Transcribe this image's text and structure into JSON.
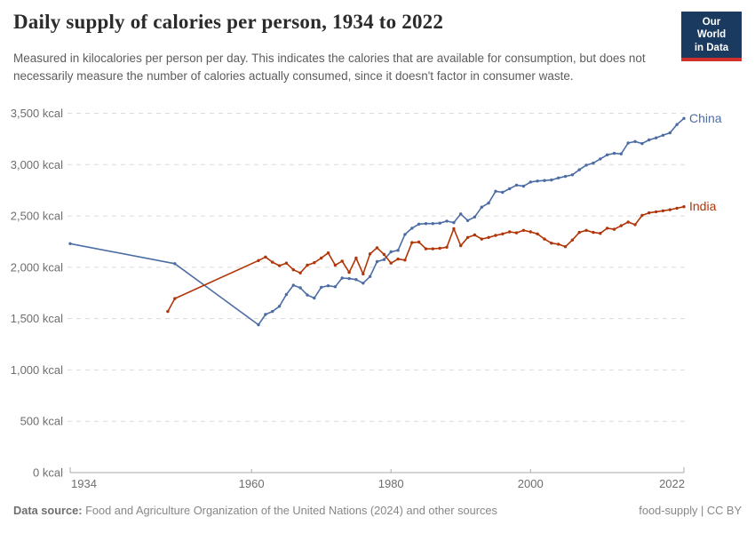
{
  "header": {
    "title": "Daily supply of calories per person, 1934 to 2022",
    "subtitle": "Measured in kilocalories per person per day. This indicates the calories that are available for consumption, but does not necessarily measure the number of calories actually consumed, since it doesn't factor in consumer waste.",
    "logo": {
      "line1": "Our World",
      "line2": "in Data"
    }
  },
  "footer": {
    "datasource_label": "Data source:",
    "datasource_text": " Food and Agriculture Organization of the United Nations (2024) and other sources",
    "right_text": "food-supply | CC BY"
  },
  "colors": {
    "china_line": "#4C6DA4",
    "india_line": "#B13507",
    "gridline": "#dadada",
    "axis": "#a8a8a8",
    "logo_bg": "#1a3a5f",
    "logo_stripe": "#d0312d"
  },
  "chart_data": {
    "type": "line",
    "title": "Daily supply of calories per person, 1934 to 2022",
    "xlabel": "",
    "ylabel": "",
    "unit": "kcal",
    "xlim": [
      1934,
      2022
    ],
    "ylim": [
      0,
      3500
    ],
    "grid": "horizontal-dashed",
    "legend_position": "line-end-labels",
    "x_ticks": [
      1934,
      1960,
      1980,
      2000,
      2022
    ],
    "y_ticks": [
      {
        "value": 0,
        "label": "0 kcal"
      },
      {
        "value": 500,
        "label": "500 kcal"
      },
      {
        "value": 1000,
        "label": "1,000 kcal"
      },
      {
        "value": 1500,
        "label": "1,500 kcal"
      },
      {
        "value": 2000,
        "label": "2,000 kcal"
      },
      {
        "value": 2500,
        "label": "2,500 kcal"
      },
      {
        "value": 3000,
        "label": "3,000 kcal"
      },
      {
        "value": 3500,
        "label": "3,500 kcal"
      }
    ],
    "series": [
      {
        "name": "China",
        "color": "#4C6DA4",
        "points": [
          [
            1934,
            2230
          ],
          [
            1949,
            2035
          ],
          [
            1961,
            1440
          ],
          [
            1962,
            1540
          ],
          [
            1963,
            1570
          ],
          [
            1964,
            1620
          ],
          [
            1965,
            1735
          ],
          [
            1966,
            1825
          ],
          [
            1967,
            1800
          ],
          [
            1968,
            1730
          ],
          [
            1969,
            1700
          ],
          [
            1970,
            1805
          ],
          [
            1971,
            1820
          ],
          [
            1972,
            1810
          ],
          [
            1973,
            1895
          ],
          [
            1974,
            1890
          ],
          [
            1975,
            1880
          ],
          [
            1976,
            1845
          ],
          [
            1977,
            1910
          ],
          [
            1978,
            2055
          ],
          [
            1979,
            2075
          ],
          [
            1980,
            2150
          ],
          [
            1981,
            2165
          ],
          [
            1982,
            2320
          ],
          [
            1983,
            2380
          ],
          [
            1984,
            2420
          ],
          [
            1985,
            2425
          ],
          [
            1986,
            2425
          ],
          [
            1987,
            2430
          ],
          [
            1988,
            2450
          ],
          [
            1989,
            2435
          ],
          [
            1990,
            2520
          ],
          [
            1991,
            2455
          ],
          [
            1992,
            2490
          ],
          [
            1993,
            2585
          ],
          [
            1994,
            2625
          ],
          [
            1995,
            2740
          ],
          [
            1996,
            2730
          ],
          [
            1997,
            2765
          ],
          [
            1998,
            2800
          ],
          [
            1999,
            2790
          ],
          [
            2000,
            2830
          ],
          [
            2001,
            2840
          ],
          [
            2002,
            2845
          ],
          [
            2003,
            2850
          ],
          [
            2004,
            2870
          ],
          [
            2005,
            2885
          ],
          [
            2006,
            2900
          ],
          [
            2007,
            2950
          ],
          [
            2008,
            2995
          ],
          [
            2009,
            3015
          ],
          [
            2010,
            3055
          ],
          [
            2011,
            3095
          ],
          [
            2012,
            3110
          ],
          [
            2013,
            3105
          ],
          [
            2014,
            3210
          ],
          [
            2015,
            3225
          ],
          [
            2016,
            3205
          ],
          [
            2017,
            3240
          ],
          [
            2018,
            3260
          ],
          [
            2019,
            3285
          ],
          [
            2020,
            3310
          ],
          [
            2021,
            3390
          ],
          [
            2022,
            3450
          ]
        ]
      },
      {
        "name": "India",
        "color": "#B13507",
        "points": [
          [
            1948,
            1570
          ],
          [
            1949,
            1695
          ],
          [
            1961,
            2065
          ],
          [
            1962,
            2100
          ],
          [
            1963,
            2050
          ],
          [
            1964,
            2015
          ],
          [
            1965,
            2040
          ],
          [
            1966,
            1975
          ],
          [
            1967,
            1945
          ],
          [
            1968,
            2020
          ],
          [
            1969,
            2045
          ],
          [
            1970,
            2090
          ],
          [
            1971,
            2140
          ],
          [
            1972,
            2020
          ],
          [
            1973,
            2060
          ],
          [
            1974,
            1950
          ],
          [
            1975,
            2090
          ],
          [
            1976,
            1935
          ],
          [
            1977,
            2130
          ],
          [
            1978,
            2190
          ],
          [
            1979,
            2125
          ],
          [
            1980,
            2040
          ],
          [
            1981,
            2080
          ],
          [
            1982,
            2070
          ],
          [
            1983,
            2240
          ],
          [
            1984,
            2245
          ],
          [
            1985,
            2180
          ],
          [
            1986,
            2180
          ],
          [
            1987,
            2185
          ],
          [
            1988,
            2195
          ],
          [
            1989,
            2375
          ],
          [
            1990,
            2210
          ],
          [
            1991,
            2290
          ],
          [
            1992,
            2315
          ],
          [
            1993,
            2275
          ],
          [
            1994,
            2290
          ],
          [
            1995,
            2310
          ],
          [
            1996,
            2325
          ],
          [
            1997,
            2345
          ],
          [
            1998,
            2335
          ],
          [
            1999,
            2360
          ],
          [
            2000,
            2345
          ],
          [
            2001,
            2325
          ],
          [
            2002,
            2275
          ],
          [
            2003,
            2235
          ],
          [
            2004,
            2225
          ],
          [
            2005,
            2200
          ],
          [
            2006,
            2265
          ],
          [
            2007,
            2340
          ],
          [
            2008,
            2360
          ],
          [
            2009,
            2340
          ],
          [
            2010,
            2330
          ],
          [
            2011,
            2380
          ],
          [
            2012,
            2370
          ],
          [
            2013,
            2405
          ],
          [
            2014,
            2440
          ],
          [
            2015,
            2415
          ],
          [
            2016,
            2505
          ],
          [
            2017,
            2530
          ],
          [
            2018,
            2540
          ],
          [
            2019,
            2550
          ],
          [
            2020,
            2560
          ],
          [
            2021,
            2575
          ],
          [
            2022,
            2590
          ]
        ]
      }
    ]
  }
}
